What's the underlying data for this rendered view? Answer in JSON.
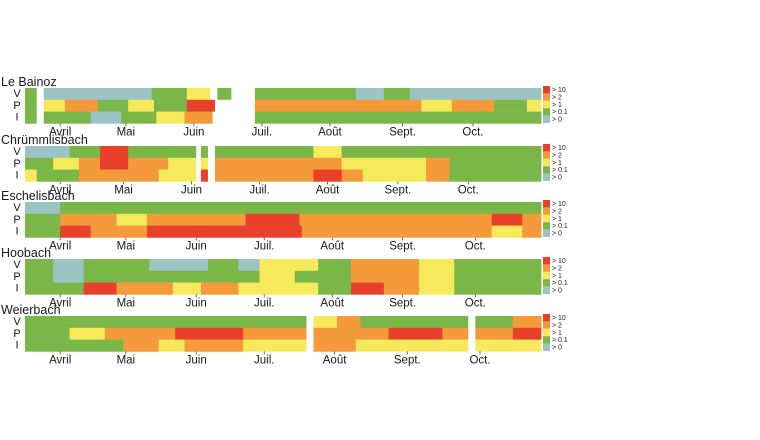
{
  "chart_data": {
    "type": "heatmap",
    "colors": {
      "c10": "#e8402a",
      "c2": "#f49a3a",
      "c1": "#f7ea5a",
      "c01": "#7ab648",
      "c0": "#9cc4c4",
      "gap": "#ffffff"
    },
    "legend": [
      {
        "key": "c10",
        "label": "> 10"
      },
      {
        "key": "c2",
        "label": "> 2"
      },
      {
        "key": "c1",
        "label": "> 1"
      },
      {
        "key": "c01",
        "label": "> 0.1"
      },
      {
        "key": "c0",
        "label": "> 0"
      }
    ],
    "row_labels": [
      "V",
      "P",
      "I"
    ],
    "time_range_days": [
      85,
      305
    ],
    "sites": [
      {
        "name": "Le Bainoz",
        "months": [
          {
            "label": "Avril",
            "day": 100
          },
          {
            "label": "Mai",
            "day": 128
          },
          {
            "label": "Juin",
            "day": 157
          },
          {
            "label": "Juil.",
            "day": 186
          },
          {
            "label": "Août",
            "day": 215
          },
          {
            "label": "Sept.",
            "day": 246
          },
          {
            "label": "Oct.",
            "day": 276
          }
        ],
        "gaps": [
          [
            90,
            93
          ],
          [
            164,
            167
          ],
          [
            173,
            183
          ]
        ],
        "rows": [
          [
            [
              85,
              90,
              "c01"
            ],
            [
              90,
              93,
              "gap"
            ],
            [
              93,
              139,
              "c0"
            ],
            [
              139,
              154,
              "c01"
            ],
            [
              154,
              164,
              "c1"
            ],
            [
              164,
              167,
              "gap"
            ],
            [
              167,
              173,
              "c01"
            ],
            [
              173,
              183,
              "gap"
            ],
            [
              183,
              226,
              "c01"
            ],
            [
              226,
              238,
              "c0"
            ],
            [
              238,
              249,
              "c01"
            ],
            [
              249,
              305,
              "c0"
            ]
          ],
          [
            [
              85,
              90,
              "c01"
            ],
            [
              90,
              93,
              "gap"
            ],
            [
              93,
              102,
              "c1"
            ],
            [
              102,
              116,
              "c2"
            ],
            [
              116,
              129,
              "c01"
            ],
            [
              129,
              140,
              "c1"
            ],
            [
              140,
              154,
              "c01"
            ],
            [
              154,
              166,
              "c10"
            ],
            [
              166,
              183,
              "gap"
            ],
            [
              183,
              254,
              "c2"
            ],
            [
              254,
              267,
              "c1"
            ],
            [
              267,
              285,
              "c2"
            ],
            [
              285,
              299,
              "c01"
            ],
            [
              299,
              305,
              "c1"
            ]
          ],
          [
            [
              85,
              90,
              "c01"
            ],
            [
              90,
              93,
              "gap"
            ],
            [
              93,
              113,
              "c01"
            ],
            [
              113,
              126,
              "c0"
            ],
            [
              126,
              141,
              "c01"
            ],
            [
              141,
              153,
              "c1"
            ],
            [
              153,
              165,
              "c2"
            ],
            [
              165,
              183,
              "gap"
            ],
            [
              183,
              305,
              "c01"
            ]
          ]
        ]
      },
      {
        "name": "Chrümmlisbach",
        "months": [
          {
            "label": "Avril",
            "day": 100
          },
          {
            "label": "Mai",
            "day": 127
          },
          {
            "label": "Juin",
            "day": 156
          },
          {
            "label": "Juil.",
            "day": 185
          },
          {
            "label": "Août",
            "day": 214
          },
          {
            "label": "Sept.",
            "day": 244
          },
          {
            "label": "Oct.",
            "day": 274
          }
        ],
        "gaps": [
          [
            158,
            160
          ],
          [
            163,
            166
          ]
        ],
        "rows": [
          [
            [
              85,
              104,
              "c0"
            ],
            [
              104,
              117,
              "c01"
            ],
            [
              117,
              129,
              "c10"
            ],
            [
              129,
              158,
              "c01"
            ],
            [
              158,
              160,
              "gap"
            ],
            [
              160,
              163,
              "c01"
            ],
            [
              163,
              166,
              "gap"
            ],
            [
              166,
              208,
              "c01"
            ],
            [
              208,
              220,
              "c1"
            ],
            [
              220,
              305,
              "c01"
            ]
          ],
          [
            [
              85,
              97,
              "c01"
            ],
            [
              97,
              108,
              "c1"
            ],
            [
              108,
              117,
              "c2"
            ],
            [
              117,
              129,
              "c10"
            ],
            [
              129,
              146,
              "c2"
            ],
            [
              146,
              158,
              "c1"
            ],
            [
              158,
              160,
              "gap"
            ],
            [
              160,
              163,
              "c1"
            ],
            [
              163,
              166,
              "gap"
            ],
            [
              166,
              208,
              "c2"
            ],
            [
              208,
              220,
              "c2"
            ],
            [
              220,
              256,
              "c1"
            ],
            [
              256,
              266,
              "c2"
            ],
            [
              266,
              305,
              "c01"
            ]
          ],
          [
            [
              85,
              90,
              "c1"
            ],
            [
              90,
              108,
              "c01"
            ],
            [
              108,
              142,
              "c2"
            ],
            [
              142,
              158,
              "c1"
            ],
            [
              158,
              160,
              "gap"
            ],
            [
              160,
              163,
              "c10"
            ],
            [
              163,
              166,
              "gap"
            ],
            [
              166,
              208,
              "c2"
            ],
            [
              208,
              220,
              "c10"
            ],
            [
              220,
              229,
              "c2"
            ],
            [
              229,
              256,
              "c1"
            ],
            [
              256,
              266,
              "c2"
            ],
            [
              266,
              305,
              "c01"
            ]
          ]
        ]
      },
      {
        "name": "Eschelisbach",
        "months": [
          {
            "label": "Avril",
            "day": 100
          },
          {
            "label": "Mai",
            "day": 128
          },
          {
            "label": "Juin",
            "day": 158
          },
          {
            "label": "Juil.",
            "day": 187
          },
          {
            "label": "Août",
            "day": 216
          },
          {
            "label": "Sept.",
            "day": 246
          },
          {
            "label": "Oct.",
            "day": 277
          }
        ],
        "gaps": [],
        "rows": [
          [
            [
              85,
              100,
              "c0"
            ],
            [
              100,
              305,
              "c01"
            ]
          ],
          [
            [
              85,
              100,
              "c01"
            ],
            [
              100,
              124,
              "c2"
            ],
            [
              124,
              137,
              "c1"
            ],
            [
              137,
              179,
              "c2"
            ],
            [
              179,
              202,
              "c10"
            ],
            [
              202,
              284,
              "c2"
            ],
            [
              284,
              297,
              "c10"
            ],
            [
              297,
              305,
              "c2"
            ]
          ],
          [
            [
              85,
              100,
              "c01"
            ],
            [
              100,
              113,
              "c10"
            ],
            [
              113,
              137,
              "c2"
            ],
            [
              137,
              203,
              "c10"
            ],
            [
              203,
              284,
              "c2"
            ],
            [
              284,
              297,
              "c1"
            ],
            [
              297,
              305,
              "c2"
            ]
          ]
        ]
      },
      {
        "name": "Hoobach",
        "months": [
          {
            "label": "Avril",
            "day": 100
          },
          {
            "label": "Mai",
            "day": 128
          },
          {
            "label": "Juin",
            "day": 158
          },
          {
            "label": "Juil.",
            "day": 187
          },
          {
            "label": "Août",
            "day": 216
          },
          {
            "label": "Sept.",
            "day": 246
          },
          {
            "label": "Oct.",
            "day": 277
          }
        ],
        "gaps": [],
        "rows": [
          [
            [
              85,
              97,
              "c01"
            ],
            [
              97,
              110,
              "c0"
            ],
            [
              110,
              138,
              "c01"
            ],
            [
              138,
              163,
              "c0"
            ],
            [
              163,
              176,
              "c01"
            ],
            [
              176,
              185,
              "c0"
            ],
            [
              185,
              210,
              "c1"
            ],
            [
              210,
              224,
              "c01"
            ],
            [
              224,
              253,
              "c2"
            ],
            [
              253,
              268,
              "c1"
            ],
            [
              268,
              305,
              "c01"
            ]
          ],
          [
            [
              85,
              97,
              "c01"
            ],
            [
              97,
              110,
              "c0"
            ],
            [
              110,
              185,
              "c01"
            ],
            [
              185,
              200,
              "c1"
            ],
            [
              200,
              210,
              "c01"
            ],
            [
              210,
              224,
              "c01"
            ],
            [
              224,
              253,
              "c2"
            ],
            [
              253,
              268,
              "c1"
            ],
            [
              268,
              305,
              "c01"
            ]
          ],
          [
            [
              85,
              97,
              "c01"
            ],
            [
              97,
              110,
              "c01"
            ],
            [
              110,
              124,
              "c10"
            ],
            [
              124,
              148,
              "c2"
            ],
            [
              148,
              160,
              "c1"
            ],
            [
              160,
              176,
              "c2"
            ],
            [
              176,
              185,
              "c1"
            ],
            [
              185,
              210,
              "c1"
            ],
            [
              210,
              224,
              "c01"
            ],
            [
              224,
              238,
              "c10"
            ],
            [
              238,
              253,
              "c2"
            ],
            [
              253,
              268,
              "c1"
            ],
            [
              268,
              305,
              "c01"
            ]
          ]
        ]
      },
      {
        "name": "Weierbach",
        "months": [
          {
            "label": "Avril",
            "day": 100
          },
          {
            "label": "Mai",
            "day": 128
          },
          {
            "label": "Juin",
            "day": 158
          },
          {
            "label": "Juil.",
            "day": 187
          },
          {
            "label": "Août",
            "day": 217
          },
          {
            "label": "Sept.",
            "day": 248
          },
          {
            "label": "Oct.",
            "day": 279
          }
        ],
        "gaps": [
          [
            205,
            208
          ],
          [
            274,
            277
          ]
        ],
        "rows": [
          [
            [
              85,
              149,
              "c01"
            ],
            [
              149,
              205,
              "c01"
            ],
            [
              205,
              208,
              "gap"
            ],
            [
              208,
              218,
              "c1"
            ],
            [
              218,
              228,
              "c2"
            ],
            [
              228,
              274,
              "c01"
            ],
            [
              274,
              277,
              "gap"
            ],
            [
              277,
              293,
              "c01"
            ],
            [
              293,
              305,
              "c2"
            ]
          ],
          [
            [
              85,
              104,
              "c01"
            ],
            [
              104,
              119,
              "c1"
            ],
            [
              119,
              149,
              "c2"
            ],
            [
              149,
              178,
              "c10"
            ],
            [
              178,
              205,
              "c2"
            ],
            [
              205,
              208,
              "gap"
            ],
            [
              208,
              240,
              "c2"
            ],
            [
              240,
              263,
              "c10"
            ],
            [
              263,
              274,
              "c2"
            ],
            [
              274,
              277,
              "gap"
            ],
            [
              277,
              293,
              "c2"
            ],
            [
              293,
              305,
              "c10"
            ]
          ],
          [
            [
              85,
              127,
              "c01"
            ],
            [
              127,
              142,
              "c2"
            ],
            [
              142,
              153,
              "c1"
            ],
            [
              153,
              178,
              "c2"
            ],
            [
              178,
              205,
              "c1"
            ],
            [
              205,
              208,
              "gap"
            ],
            [
              208,
              226,
              "c2"
            ],
            [
              226,
              274,
              "c1"
            ],
            [
              274,
              277,
              "gap"
            ],
            [
              277,
              305,
              "c1"
            ]
          ]
        ]
      }
    ]
  }
}
